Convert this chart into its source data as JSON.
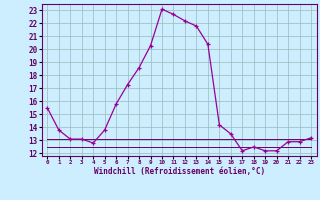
{
  "xlabel": "Windchill (Refroidissement éolien,°C)",
  "hours": [
    0,
    1,
    2,
    3,
    4,
    5,
    6,
    7,
    8,
    9,
    10,
    11,
    12,
    13,
    14,
    15,
    16,
    17,
    18,
    19,
    20,
    21,
    22,
    23
  ],
  "windchill": [
    15.5,
    13.8,
    13.1,
    13.1,
    12.8,
    13.8,
    15.8,
    17.3,
    18.6,
    20.3,
    23.1,
    22.7,
    22.2,
    21.8,
    20.4,
    14.2,
    13.5,
    12.2,
    12.5,
    12.2,
    12.2,
    12.9,
    12.9,
    13.2
  ],
  "flat_line": [
    13.1,
    13.1,
    13.1,
    13.1,
    13.1,
    13.1,
    13.1,
    13.1,
    13.1,
    13.1,
    13.1,
    13.1,
    13.1,
    13.1,
    13.1,
    13.1,
    13.1,
    13.1,
    13.1,
    13.1,
    13.1,
    13.1,
    13.1,
    13.1
  ],
  "flat_line2": [
    12.5,
    12.5,
    12.5,
    12.5,
    12.5,
    12.5,
    12.5,
    12.5,
    12.5,
    12.5,
    12.5,
    12.5,
    12.5,
    12.5,
    12.5,
    12.5,
    12.5,
    12.5,
    12.5,
    12.5,
    12.5,
    12.5,
    12.5,
    12.5
  ],
  "line_color": "#990099",
  "flat_color": "#660066",
  "bg_color": "#cceeff",
  "grid_color": "#99bbbb",
  "ylim": [
    11.8,
    23.5
  ],
  "yticks": [
    12,
    13,
    14,
    15,
    16,
    17,
    18,
    19,
    20,
    21,
    22,
    23
  ],
  "xlim": [
    -0.5,
    23.5
  ],
  "xticks": [
    0,
    1,
    2,
    3,
    4,
    5,
    6,
    7,
    8,
    9,
    10,
    11,
    12,
    13,
    14,
    15,
    16,
    17,
    18,
    19,
    20,
    21,
    22,
    23
  ]
}
